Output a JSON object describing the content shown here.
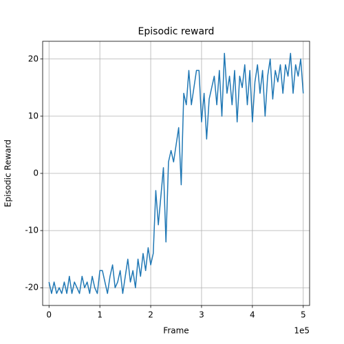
{
  "chart_data": {
    "type": "line",
    "title": "Episodic reward",
    "x_label": "Frame",
    "y_label": "Episodic Reward",
    "x_offset_label": "1e5",
    "x": [
      0,
      5000,
      10000,
      15000,
      20000,
      25000,
      30000,
      35000,
      40000,
      45000,
      50000,
      55000,
      60000,
      65000,
      70000,
      75000,
      80000,
      85000,
      90000,
      95000,
      100000,
      105000,
      110000,
      115000,
      120000,
      125000,
      130000,
      135000,
      140000,
      145000,
      150000,
      155000,
      160000,
      165000,
      170000,
      175000,
      180000,
      185000,
      190000,
      195000,
      200000,
      205000,
      210000,
      215000,
      220000,
      225000,
      230000,
      235000,
      240000,
      245000,
      250000,
      255000,
      260000,
      265000,
      270000,
      275000,
      280000,
      285000,
      290000,
      295000,
      300000,
      305000,
      310000,
      315000,
      320000,
      325000,
      330000,
      335000,
      340000,
      345000,
      350000,
      355000,
      360000,
      365000,
      370000,
      375000,
      380000,
      385000,
      390000,
      395000,
      400000,
      405000,
      410000,
      415000,
      420000,
      425000,
      430000,
      435000,
      440000,
      445000,
      450000,
      455000,
      460000,
      465000,
      470000,
      475000,
      480000,
      485000,
      490000,
      495000,
      500000
    ],
    "series": [
      {
        "name": "Episodic reward",
        "color": "#1f77b4",
        "values": [
          -19,
          -21,
          -19,
          -21,
          -20,
          -21,
          -19,
          -21,
          -18,
          -21,
          -19,
          -20,
          -21,
          -18,
          -20,
          -19,
          -21,
          -18,
          -20,
          -21,
          -17,
          -17,
          -19,
          -21,
          -18,
          -16,
          -20,
          -19,
          -17,
          -21,
          -18,
          -15,
          -19,
          -17,
          -20,
          -15,
          -18,
          -14,
          -17,
          -13,
          -16,
          -14,
          -3,
          -9,
          -4,
          1,
          -12,
          2,
          4,
          2,
          5,
          8,
          -2,
          14,
          12,
          18,
          12,
          15,
          18,
          18,
          9,
          14,
          6,
          13,
          15,
          17,
          12,
          18,
          10,
          21,
          14,
          17,
          12,
          18,
          9,
          17,
          15,
          19,
          12,
          18,
          9,
          16,
          19,
          14,
          18,
          10,
          17,
          20,
          13,
          18,
          16,
          19,
          14,
          19,
          17,
          21,
          14,
          19,
          17,
          20,
          14
        ]
      }
    ],
    "xlim": [
      -12500,
      512500
    ],
    "ylim": [
      -23.1,
      23.1
    ],
    "xticks": [
      {
        "value": 0,
        "label": "0"
      },
      {
        "value": 100000,
        "label": "1"
      },
      {
        "value": 200000,
        "label": "2"
      },
      {
        "value": 300000,
        "label": "3"
      },
      {
        "value": 400000,
        "label": "4"
      },
      {
        "value": 500000,
        "label": "5"
      }
    ],
    "yticks": [
      -20,
      -10,
      0,
      10,
      20
    ],
    "grid": true
  }
}
